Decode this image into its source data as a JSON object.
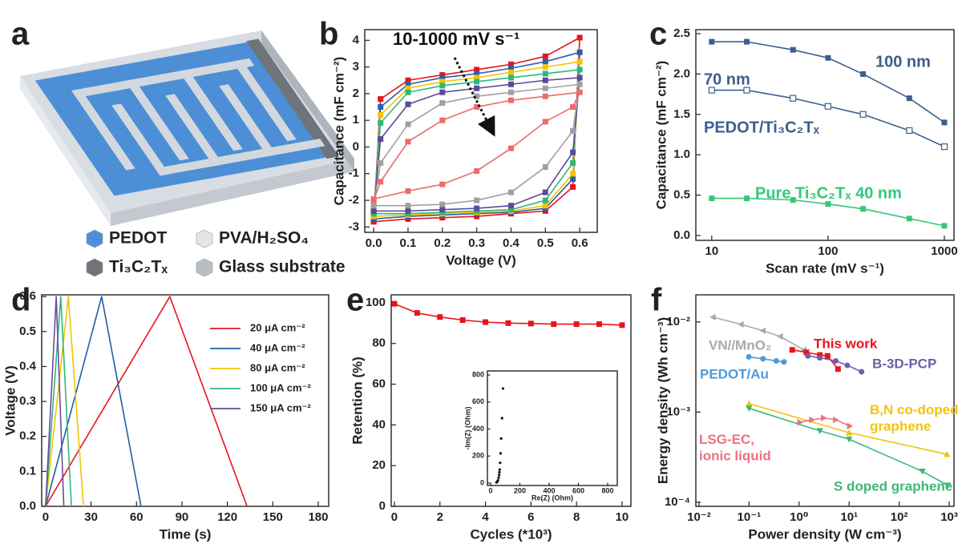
{
  "panel_labels": [
    "a",
    "b",
    "c",
    "d",
    "e",
    "f"
  ],
  "device_legend": [
    {
      "text": "PEDOT",
      "color": "#4d8fd6"
    },
    {
      "text": "PVA/H₂SO₄",
      "color": "#e2e5e9"
    },
    {
      "text": "Ti₃C₂Tₓ",
      "color": "#6f747b"
    },
    {
      "text": "Glass substrate",
      "color": "#b9bec5"
    }
  ],
  "chart_data": [
    {
      "type": "line",
      "xlabel": "Voltage (V)",
      "ylabel": "Capacitance (mF cm⁻²)",
      "annotations": [
        {
          "text": "10-1000 mV s⁻¹",
          "color": "#111111"
        }
      ],
      "x": [
        0,
        0.02,
        0.1,
        0.2,
        0.3,
        0.4,
        0.5,
        0.6,
        0.58,
        0.5,
        0.4,
        0.3,
        0.2,
        0.1,
        0
      ],
      "xlim": [
        -0.026,
        0.651
      ],
      "xticks": [
        {
          "value": 0,
          "label": "0.0"
        },
        0.1,
        0.2,
        0.3,
        0.4,
        0.5,
        0.6
      ],
      "ylim": [
        -3.2,
        4.4
      ],
      "yticks": [
        -3,
        -2,
        -1,
        0,
        1,
        2,
        3,
        4
      ],
      "series": [
        {
          "color": "#e8141c",
          "marker": "square",
          "values": [
            -2.8,
            1.8,
            2.5,
            2.7,
            2.9,
            3.1,
            3.4,
            4.1,
            -1.5,
            -2.4,
            -2.5,
            -2.6,
            -2.65,
            -2.7,
            -2.8
          ]
        },
        {
          "color": "#2b5fa8",
          "marker": "square",
          "values": [
            -2.7,
            1.5,
            2.35,
            2.6,
            2.75,
            2.95,
            3.2,
            3.55,
            -1.2,
            -2.3,
            -2.45,
            -2.5,
            -2.55,
            -2.6,
            -2.7
          ]
        },
        {
          "color": "#f2c500",
          "marker": "square",
          "values": [
            -2.6,
            1.2,
            2.2,
            2.45,
            2.6,
            2.8,
            3.0,
            3.2,
            -1.0,
            -2.2,
            -2.4,
            -2.45,
            -2.5,
            -2.55,
            -2.6
          ]
        },
        {
          "color": "#2db87a",
          "marker": "square",
          "values": [
            -2.5,
            0.9,
            2.05,
            2.3,
            2.45,
            2.6,
            2.75,
            2.9,
            -0.6,
            -2.0,
            -2.35,
            -2.4,
            -2.45,
            -2.5,
            -2.5
          ]
        },
        {
          "color": "#5b4a9a",
          "marker": "square",
          "values": [
            -2.4,
            0.3,
            1.6,
            2.05,
            2.2,
            2.35,
            2.5,
            2.6,
            -0.2,
            -1.7,
            -2.2,
            -2.3,
            -2.35,
            -2.4,
            -2.4
          ]
        },
        {
          "color": "#a0a0a0",
          "marker": "square",
          "values": [
            -2.2,
            -0.6,
            0.85,
            1.65,
            1.9,
            2.05,
            2.2,
            2.35,
            0.6,
            -0.75,
            -1.7,
            -2.0,
            -2.15,
            -2.2,
            -2.2
          ]
        },
        {
          "color": "#ec6b6b",
          "marker": "square",
          "values": [
            -2.0,
            -1.3,
            0.2,
            1.0,
            1.5,
            1.75,
            1.9,
            2.05,
            1.5,
            0.95,
            -0.05,
            -0.9,
            -1.4,
            -1.65,
            -1.95
          ]
        }
      ]
    },
    {
      "type": "line",
      "xlabel": "Scan rate (mV s⁻¹)",
      "ylabel": "Capacitance (mF cm⁻²)",
      "xscale": "log",
      "annotations": [
        {
          "text": "PEDOT/Ti₃C₂Tₓ",
          "color": "#3b5f8e"
        }
      ],
      "x": [
        10,
        20,
        50,
        100,
        200,
        500,
        1000
      ],
      "xlim": [
        7.3,
        1210
      ],
      "xticks": [
        10,
        100,
        1000
      ],
      "ylim": [
        -0.06,
        2.55
      ],
      "yticks": [
        {
          "value": 0,
          "label": "0.0"
        },
        0.5,
        {
          "value": 1,
          "label": "1.0"
        },
        1.5,
        {
          "value": 2,
          "label": "2.0"
        },
        2.5
      ],
      "series": [
        {
          "name": "100 nm",
          "color": "#3b5f8e",
          "marker": "square",
          "values": [
            2.4,
            2.4,
            2.3,
            2.2,
            2.0,
            1.7,
            1.4
          ]
        },
        {
          "name": "70 nm",
          "color": "#3b5f8e",
          "marker": "open-square",
          "values": [
            1.8,
            1.8,
            1.7,
            1.6,
            1.5,
            1.3,
            1.1
          ]
        },
        {
          "name": "Pure Ti₃C₂Tₓ 40 nm",
          "color": "#34c878",
          "marker": "square",
          "values": [
            0.46,
            0.46,
            0.44,
            0.39,
            0.33,
            0.21,
            0.12
          ]
        }
      ]
    },
    {
      "type": "line",
      "xlabel": "Time (s)",
      "ylabel": "Voltage (V)",
      "legend": "upper right",
      "xlim": [
        -2.6,
        186.9
      ],
      "xticks": [
        0,
        30,
        60,
        90,
        120,
        150,
        180
      ],
      "ylim": [
        0,
        0.605
      ],
      "yticks": [
        {
          "value": 0,
          "label": "0.0"
        },
        0.1,
        0.2,
        0.3,
        0.4,
        0.5,
        0.6
      ],
      "series": [
        {
          "name": "20 μA cm⁻²",
          "color": "#e8141c",
          "marker": "none",
          "x": [
            0,
            82,
            133
          ],
          "values": [
            0,
            0.6,
            0
          ]
        },
        {
          "name": "40 μA cm⁻²",
          "color": "#1f5fa8",
          "marker": "none",
          "x": [
            0,
            37,
            63
          ],
          "values": [
            0,
            0.6,
            0
          ]
        },
        {
          "name": "80 μA cm⁻²",
          "color": "#f2c500",
          "marker": "none",
          "x": [
            0,
            15,
            25
          ],
          "values": [
            0,
            0.6,
            0
          ]
        },
        {
          "name": "100 μA cm⁻²",
          "color": "#2db87a",
          "marker": "none",
          "x": [
            0,
            10,
            17
          ],
          "values": [
            0,
            0.6,
            0
          ]
        },
        {
          "name": "150 μA cm⁻²",
          "color": "#6a4c9c",
          "marker": "none",
          "x": [
            0,
            7,
            12
          ],
          "values": [
            0,
            0.6,
            0
          ]
        }
      ]
    },
    {
      "type": "line",
      "xlabel": "Cycles (*10³)",
      "ylabel": "Retention (%)",
      "x": [
        0,
        1,
        2,
        3,
        4,
        5,
        6,
        7,
        8,
        9,
        10
      ],
      "xlim": [
        -0.14,
        10.39
      ],
      "xticks": [
        0,
        2,
        4,
        6,
        8,
        10
      ],
      "ylim": [
        0,
        103.9
      ],
      "yticks": [
        0,
        20,
        40,
        60,
        80,
        100
      ],
      "series": [
        {
          "color": "#e8141c",
          "marker": "square",
          "values": [
            99.5,
            95,
            93,
            91.5,
            90.5,
            90,
            89.8,
            89.5,
            89.5,
            89.5,
            89
          ]
        }
      ],
      "inset": {
        "type": "scatter",
        "xlabel": "Re(Z) (Ohm)",
        "ylabel": "-Im(Z) (Ohm)",
        "xlim": [
          -22,
          866
        ],
        "xticks": [
          0,
          200,
          400,
          600,
          800
        ],
        "ylim": [
          -18,
          830
        ],
        "yticks": [
          0,
          200,
          400,
          600,
          800
        ],
        "series": [
          {
            "color": "#111111",
            "marker": "dot",
            "x": [
              40,
              45,
              50,
              55,
              58,
              60,
              62,
              65,
              68,
              72,
              78,
              85
            ],
            "values": [
              5,
              10,
              20,
              40,
              60,
              80,
              100,
              150,
              220,
              330,
              480,
              700
            ]
          }
        ]
      }
    },
    {
      "type": "line",
      "xlabel": "Power density (W cm⁻³)",
      "ylabel": "Energy density (Wh cm⁻³)",
      "xscale": "log",
      "yscale": "log",
      "xlim": [
        0.00865,
        1245
      ],
      "xticks": [
        {
          "value": 0.01,
          "label": "10⁻²"
        },
        {
          "value": 0.1,
          "label": "10⁻¹"
        },
        {
          "value": 1,
          "label": "10⁰"
        },
        {
          "value": 10,
          "label": "10¹"
        },
        {
          "value": 100,
          "label": "10²"
        },
        {
          "value": 1000,
          "label": "10³"
        }
      ],
      "ylim": [
        9e-05,
        0.02
      ],
      "yticks": [
        {
          "value": 0.0001,
          "label": "10⁻⁴"
        },
        {
          "value": 0.001,
          "label": "10⁻³"
        },
        {
          "value": 0.01,
          "label": "10⁻²"
        }
      ],
      "series": [
        {
          "name": "VN//MnO₂",
          "color": "#aaaaaa",
          "marker": "triangle-left",
          "x": [
            0.019,
            0.069,
            0.19,
            0.42,
            1.25
          ],
          "values": [
            0.0113,
            0.0094,
            0.008,
            0.0069,
            0.0049
          ]
        },
        {
          "name": "This work",
          "color": "#e8141c",
          "marker": "square",
          "x": [
            0.73,
            1.4,
            2.6,
            3.7,
            6.0
          ],
          "values": [
            0.0049,
            0.0046,
            0.0043,
            0.0042,
            0.003
          ]
        },
        {
          "name": "B-3D-PCP",
          "color": "#6e5fa8",
          "marker": "circle",
          "x": [
            1.5,
            2.6,
            5.4,
            9.2,
            17.7
          ],
          "values": [
            0.0042,
            0.004,
            0.0037,
            0.0033,
            0.0028
          ]
        },
        {
          "name": "PEDOT/Au",
          "color": "#4d9ad8",
          "marker": "circle",
          "x": [
            0.099,
            0.19,
            0.35,
            0.5
          ],
          "values": [
            0.0041,
            0.0039,
            0.0037,
            0.0036
          ]
        },
        {
          "name": "B,N co-doped\ngraphene",
          "color": "#f1c40f",
          "marker": "triangle",
          "x": [
            0.1,
            10,
            900
          ],
          "values": [
            0.00124,
            0.00059,
            0.00034
          ]
        },
        {
          "name": "LSG-EC,\nionic liquid",
          "color": "#ec7182",
          "marker": "triangle-right",
          "x": [
            1.04,
            1.8,
            3.1,
            5.4,
            10.3
          ],
          "values": [
            0.00077,
            0.00082,
            0.00086,
            0.00082,
            0.0007
          ]
        },
        {
          "name": "S doped graphene",
          "color": "#3cb878",
          "marker": "triangle-down",
          "x": [
            0.1,
            2.6,
            10,
            291,
            929
          ],
          "values": [
            0.0011,
            0.00062,
            0.0005,
            0.00022,
            0.000154
          ]
        }
      ]
    }
  ]
}
